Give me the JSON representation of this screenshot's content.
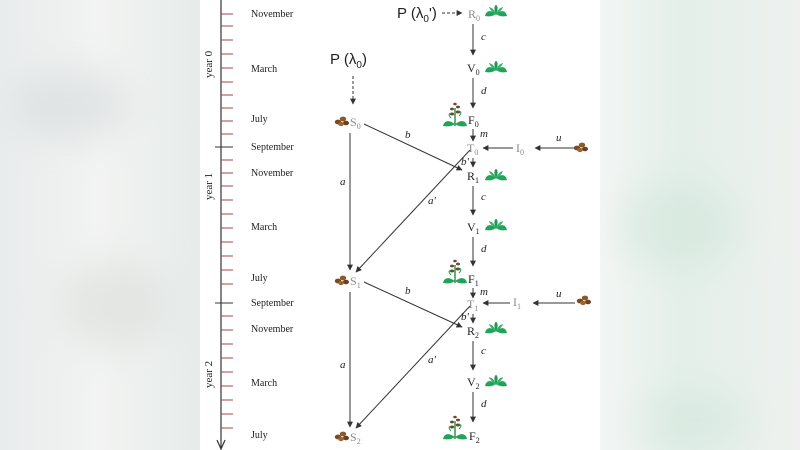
{
  "months": {
    "m1": "November",
    "m2": "March",
    "m3": "July",
    "m4": "September",
    "m5": "November",
    "m6": "March",
    "m7": "July",
    "m8": "September",
    "m9": "November",
    "m10": "March",
    "m11": "July"
  },
  "years": {
    "y0": "year 0",
    "y1": "year 1",
    "y2": "year 2"
  },
  "nodes": {
    "R0": "R",
    "R0s": "0",
    "V0": "V",
    "V0s": "0",
    "F0": "F",
    "F0s": "0",
    "T0": "T",
    "T0s": "0",
    "I0": "I",
    "I0s": "0",
    "R1": "R",
    "R1s": "1",
    "V1": "V",
    "V1s": "1",
    "F1": "F",
    "F1s": "1",
    "T1": "T",
    "T1s": "1",
    "I1": "I",
    "I1s": "1",
    "R2": "R",
    "R2s": "2",
    "V2": "V",
    "V2s": "2",
    "F2": "F",
    "F2s": "2",
    "S0": "S",
    "S0s": "0",
    "S1": "S",
    "S1s": "1",
    "S2": "S",
    "S2s": "2"
  },
  "edges": {
    "c": "c",
    "d": "d",
    "m": "m",
    "u": "u",
    "b": "b",
    "bp": "b'",
    "a": "a",
    "ap": "a'"
  },
  "p_labels": {
    "p0_main": "P (λ",
    "p0_sub": "0",
    "p0_end": ")",
    "p1_main": "P (λ",
    "p1_sub": "0",
    "p1_end": "')"
  }
}
